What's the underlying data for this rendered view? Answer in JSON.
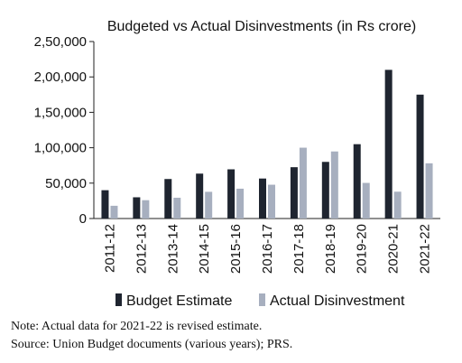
{
  "chart_data": {
    "type": "bar",
    "title": "Budgeted vs Actual Disinvestments (in Rs crore)",
    "xlabel": "",
    "ylabel": "",
    "categories": [
      "2011-12",
      "2012-13",
      "2013-14",
      "2014-15",
      "2015-16",
      "2016-17",
      "2017-18",
      "2018-19",
      "2019-20",
      "2020-21",
      "2021-22"
    ],
    "series": [
      {
        "name": "Budget Estimate",
        "color": "#1f2530",
        "values": [
          40000,
          30000,
          55814,
          63425,
          69500,
          56500,
          72500,
          80000,
          105000,
          210000,
          175000
        ]
      },
      {
        "name": "Actual Disinvestment",
        "color": "#a7afbf",
        "values": [
          18000,
          25890,
          29368,
          37737,
          42132,
          47743,
          100057,
          94727,
          50304,
          37897,
          78000
        ]
      }
    ],
    "ylim": [
      0,
      250000
    ],
    "yticks": [
      0,
      50000,
      100000,
      150000,
      200000,
      250000
    ],
    "ytick_labels": [
      "0",
      "50,000",
      "1,00,000",
      "1,50,000",
      "2,00,000",
      "2,50,000"
    ],
    "grid": false,
    "legend": "bottom"
  },
  "notes": {
    "note": "Note: Actual data for 2021-22 is revised estimate.",
    "source": "Source: Union Budget documents (various years); PRS."
  }
}
